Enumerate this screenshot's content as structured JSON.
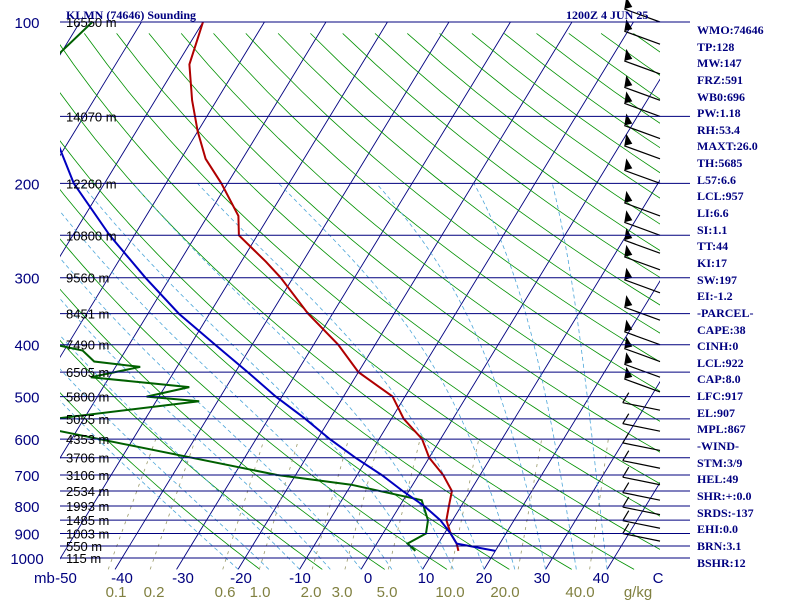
{
  "header": {
    "station": "KLMN (74646) Sounding",
    "time": "1200Z  4 JUN 25"
  },
  "chart_data": {
    "type": "skew-t",
    "x_axis_label": "mb",
    "temperature_ticks": [
      "-50",
      "-40",
      "-30",
      "-20",
      "-10",
      "0",
      "10",
      "20",
      "30",
      "40",
      "C"
    ],
    "mixing_ratio_ticks": [
      "0.1",
      "0.2",
      "0.6",
      "1.0",
      "2.0",
      "3.0",
      "5.0",
      "10.0",
      "20.0",
      "40.0"
    ],
    "mixing_ratio_unit": "g/kg",
    "pressure_levels": [
      {
        "label": "100",
        "p": 100
      },
      {
        "label": "200",
        "p": 200
      },
      {
        "label": "300",
        "p": 300
      },
      {
        "label": "400",
        "p": 400
      },
      {
        "label": "500",
        "p": 500
      },
      {
        "label": "600",
        "p": 600
      },
      {
        "label": "700",
        "p": 700
      },
      {
        "label": "800",
        "p": 800
      },
      {
        "label": "900",
        "p": 900
      },
      {
        "label": "1000",
        "p": 1000
      }
    ],
    "height_labels": [
      {
        "label": "16550 m",
        "p": 100
      },
      {
        "label": "14070 m",
        "p": 150
      },
      {
        "label": "12260 m",
        "p": 200
      },
      {
        "label": "10800 m",
        "p": 250
      },
      {
        "label": "9560 m",
        "p": 300
      },
      {
        "label": "8451 m",
        "p": 350
      },
      {
        "label": "7490 m",
        "p": 400
      },
      {
        "label": "6505 m",
        "p": 450
      },
      {
        "label": "5800 m",
        "p": 500
      },
      {
        "label": "5055 m",
        "p": 550
      },
      {
        "label": "4353 m",
        "p": 600
      },
      {
        "label": "3706 m",
        "p": 650
      },
      {
        "label": "3106 m",
        "p": 700
      },
      {
        "label": "2534 m",
        "p": 750
      },
      {
        "label": "1993 m",
        "p": 800
      },
      {
        "label": "1485 m",
        "p": 850
      },
      {
        "label": "1003 m",
        "p": 900
      },
      {
        "label": "550 m",
        "p": 950
      },
      {
        "label": "115 m",
        "p": 1000
      }
    ],
    "series": [
      {
        "color": "#b00000",
        "points": [
          {
            "p": 100,
            "t": -80
          },
          {
            "p": 120,
            "t": -78
          },
          {
            "p": 140,
            "t": -74
          },
          {
            "p": 160,
            "t": -70
          },
          {
            "p": 180,
            "t": -66
          },
          {
            "p": 200,
            "t": -61
          },
          {
            "p": 230,
            "t": -55
          },
          {
            "p": 250,
            "t": -53
          },
          {
            "p": 280,
            "t": -46
          },
          {
            "p": 300,
            "t": -42
          },
          {
            "p": 350,
            "t": -34
          },
          {
            "p": 400,
            "t": -26
          },
          {
            "p": 450,
            "t": -20
          },
          {
            "p": 500,
            "t": -12
          },
          {
            "p": 550,
            "t": -8
          },
          {
            "p": 600,
            "t": -3
          },
          {
            "p": 650,
            "t": 0
          },
          {
            "p": 700,
            "t": 4
          },
          {
            "p": 750,
            "t": 7
          },
          {
            "p": 800,
            "t": 8
          },
          {
            "p": 850,
            "t": 9
          },
          {
            "p": 900,
            "t": 11
          },
          {
            "p": 940,
            "t": 13
          },
          {
            "p": 970,
            "t": 14
          }
        ]
      },
      {
        "color": "#006000",
        "points": [
          {
            "p": 100,
            "t": -98
          },
          {
            "p": 120,
            "t": -101
          },
          {
            "p": 140,
            "t": -106
          },
          {
            "p": 170,
            "t": -109
          },
          {
            "p": 200,
            "t": -106
          },
          {
            "p": 230,
            "t": -104
          },
          {
            "p": 250,
            "t": -105
          },
          {
            "p": 260,
            "t": -93
          },
          {
            "p": 300,
            "t": -90
          },
          {
            "p": 350,
            "t": -78
          },
          {
            "p": 400,
            "t": -72
          },
          {
            "p": 410,
            "t": -67
          },
          {
            "p": 430,
            "t": -64
          },
          {
            "p": 440,
            "t": -56
          },
          {
            "p": 460,
            "t": -63
          },
          {
            "p": 480,
            "t": -46
          },
          {
            "p": 500,
            "t": -52
          },
          {
            "p": 510,
            "t": -43
          },
          {
            "p": 560,
            "t": -70
          },
          {
            "p": 700,
            "t": -23
          },
          {
            "p": 730,
            "t": -10
          },
          {
            "p": 780,
            "t": 3
          },
          {
            "p": 850,
            "t": 6
          },
          {
            "p": 900,
            "t": 7
          },
          {
            "p": 940,
            "t": 5
          },
          {
            "p": 970,
            "t": 7
          }
        ]
      },
      {
        "color": "#0000c0",
        "points": [
          {
            "p": 100,
            "t": -108
          },
          {
            "p": 150,
            "t": -96
          },
          {
            "p": 200,
            "t": -85
          },
          {
            "p": 250,
            "t": -74
          },
          {
            "p": 300,
            "t": -64
          },
          {
            "p": 350,
            "t": -55
          },
          {
            "p": 400,
            "t": -46
          },
          {
            "p": 450,
            "t": -38
          },
          {
            "p": 500,
            "t": -31
          },
          {
            "p": 550,
            "t": -24
          },
          {
            "p": 600,
            "t": -18
          },
          {
            "p": 650,
            "t": -12
          },
          {
            "p": 700,
            "t": -6
          },
          {
            "p": 750,
            "t": -1
          },
          {
            "p": 800,
            "t": 4
          },
          {
            "p": 850,
            "t": 8
          },
          {
            "p": 900,
            "t": 11
          },
          {
            "p": 940,
            "t": 13
          },
          {
            "p": 970,
            "t": 20
          }
        ]
      }
    ],
    "wind_barbs_p": [
      100,
      110,
      125,
      140,
      150,
      165,
      180,
      200,
      230,
      250,
      270,
      290,
      320,
      360,
      400,
      430,
      460,
      490,
      530,
      580,
      630,
      680,
      730,
      780,
      830,
      880,
      930
    ],
    "indices": [
      "WMO:74646",
      "TP:128",
      "MW:147",
      "FRZ:591",
      "WB0:696",
      "PW:1.18",
      "RH:53.4",
      "MAXT:26.0",
      "TH:5685",
      "L57:6.6",
      "LCL:957",
      "LI:6.6",
      "SI:1.1",
      "TT:44",
      "KI:17",
      "SW:197",
      "EI:-1.2",
      "-PARCEL-",
      "CAPE:38",
      "CINH:0",
      "LCL:922",
      "CAP:8.0",
      "LFC:917",
      "EL:907",
      "MPL:867",
      "-WIND-",
      "STM:3/9",
      "HEL:49",
      "SHR:+:0.0",
      "SRDS:-137",
      "EHI:0.0",
      "BRN:3.1",
      "BSHR:12"
    ],
    "colors": {
      "isobar": "#00007f",
      "isotherm": "#00007f",
      "dry_adiabat": "#009000",
      "moist_adiabat": "#4da6d9",
      "mixing_ratio": "#9a9a6a",
      "temperature": "#b00000",
      "dewpoint": "#006000",
      "parcel": "#0000c0",
      "label": "#000080",
      "mixing_label": "#808040"
    }
  }
}
